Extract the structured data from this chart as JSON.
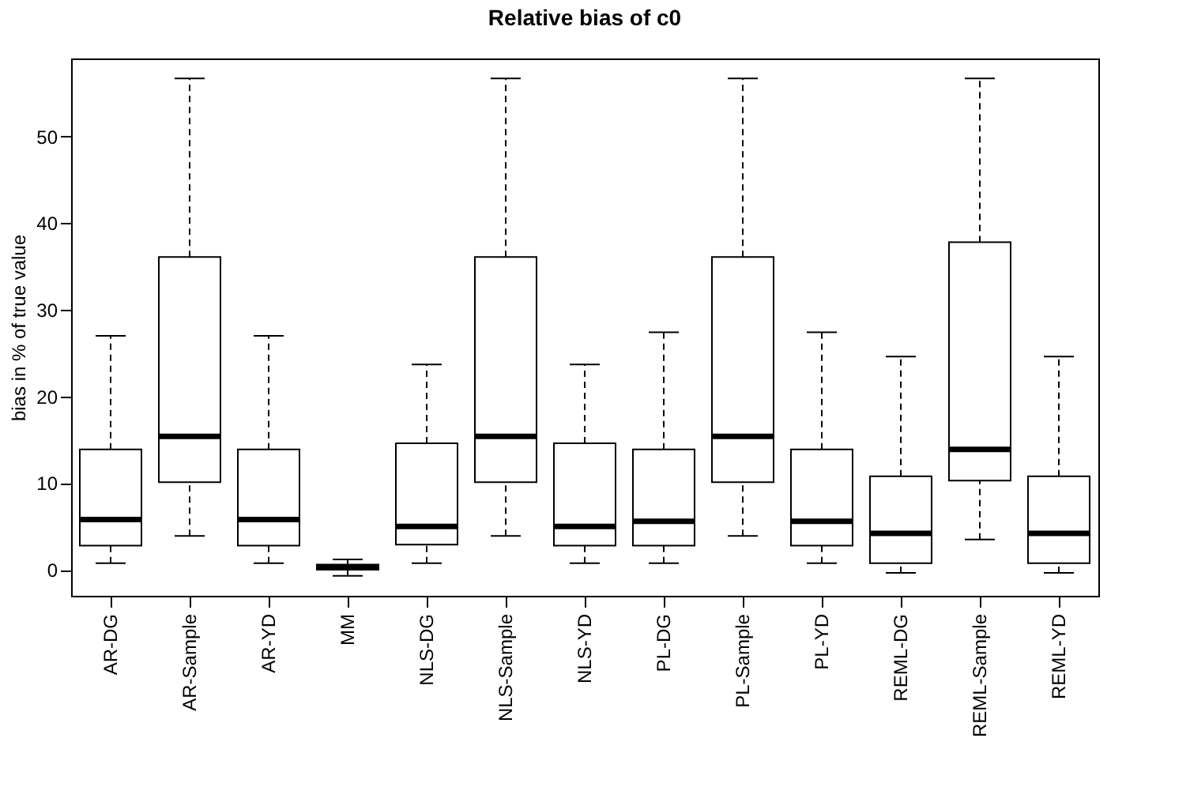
{
  "chart_data": {
    "type": "box",
    "title": "Relative bias of c0",
    "ylabel": "bias in % of true value",
    "categories": [
      "AR-DG",
      "AR-Sample",
      "AR-YD",
      "MM",
      "NLS-DG",
      "NLS-Sample",
      "NLS-YD",
      "PL-DG",
      "PL-Sample",
      "PL-YD",
      "REML-DG",
      "REML-Sample",
      "REML-YD"
    ],
    "boxes": [
      {
        "low": 0.75,
        "q1": 2.8,
        "median": 5.8,
        "q3": 13.9,
        "high": 27.0
      },
      {
        "low": 3.9,
        "q1": 10.1,
        "median": 15.4,
        "q3": 36.1,
        "high": 56.7
      },
      {
        "low": 0.75,
        "q1": 2.8,
        "median": 5.8,
        "q3": 13.9,
        "high": 27.0
      },
      {
        "low": -0.7,
        "q1": 0.0,
        "median": 0.3,
        "q3": 0.6,
        "high": 1.2
      },
      {
        "low": 0.75,
        "q1": 2.9,
        "median": 5.0,
        "q3": 14.6,
        "high": 23.7
      },
      {
        "low": 3.9,
        "q1": 10.1,
        "median": 15.4,
        "q3": 36.1,
        "high": 56.7
      },
      {
        "low": 0.75,
        "q1": 2.8,
        "median": 5.0,
        "q3": 14.6,
        "high": 23.7
      },
      {
        "low": 0.75,
        "q1": 2.8,
        "median": 5.6,
        "q3": 13.9,
        "high": 27.4
      },
      {
        "low": 3.9,
        "q1": 10.1,
        "median": 15.4,
        "q3": 36.1,
        "high": 56.7
      },
      {
        "low": 0.75,
        "q1": 2.8,
        "median": 5.6,
        "q3": 13.9,
        "high": 27.4
      },
      {
        "low": -0.35,
        "q1": 0.75,
        "median": 4.2,
        "q3": 10.8,
        "high": 24.6
      },
      {
        "low": 3.5,
        "q1": 10.3,
        "median": 13.9,
        "q3": 37.8,
        "high": 56.7
      },
      {
        "low": -0.35,
        "q1": 0.75,
        "median": 4.2,
        "q3": 10.8,
        "high": 24.6
      }
    ],
    "ylim": [
      -3,
      59
    ],
    "yticks": [
      0,
      10,
      20,
      30,
      40,
      50
    ],
    "grid": false,
    "line_style": "dashed"
  }
}
